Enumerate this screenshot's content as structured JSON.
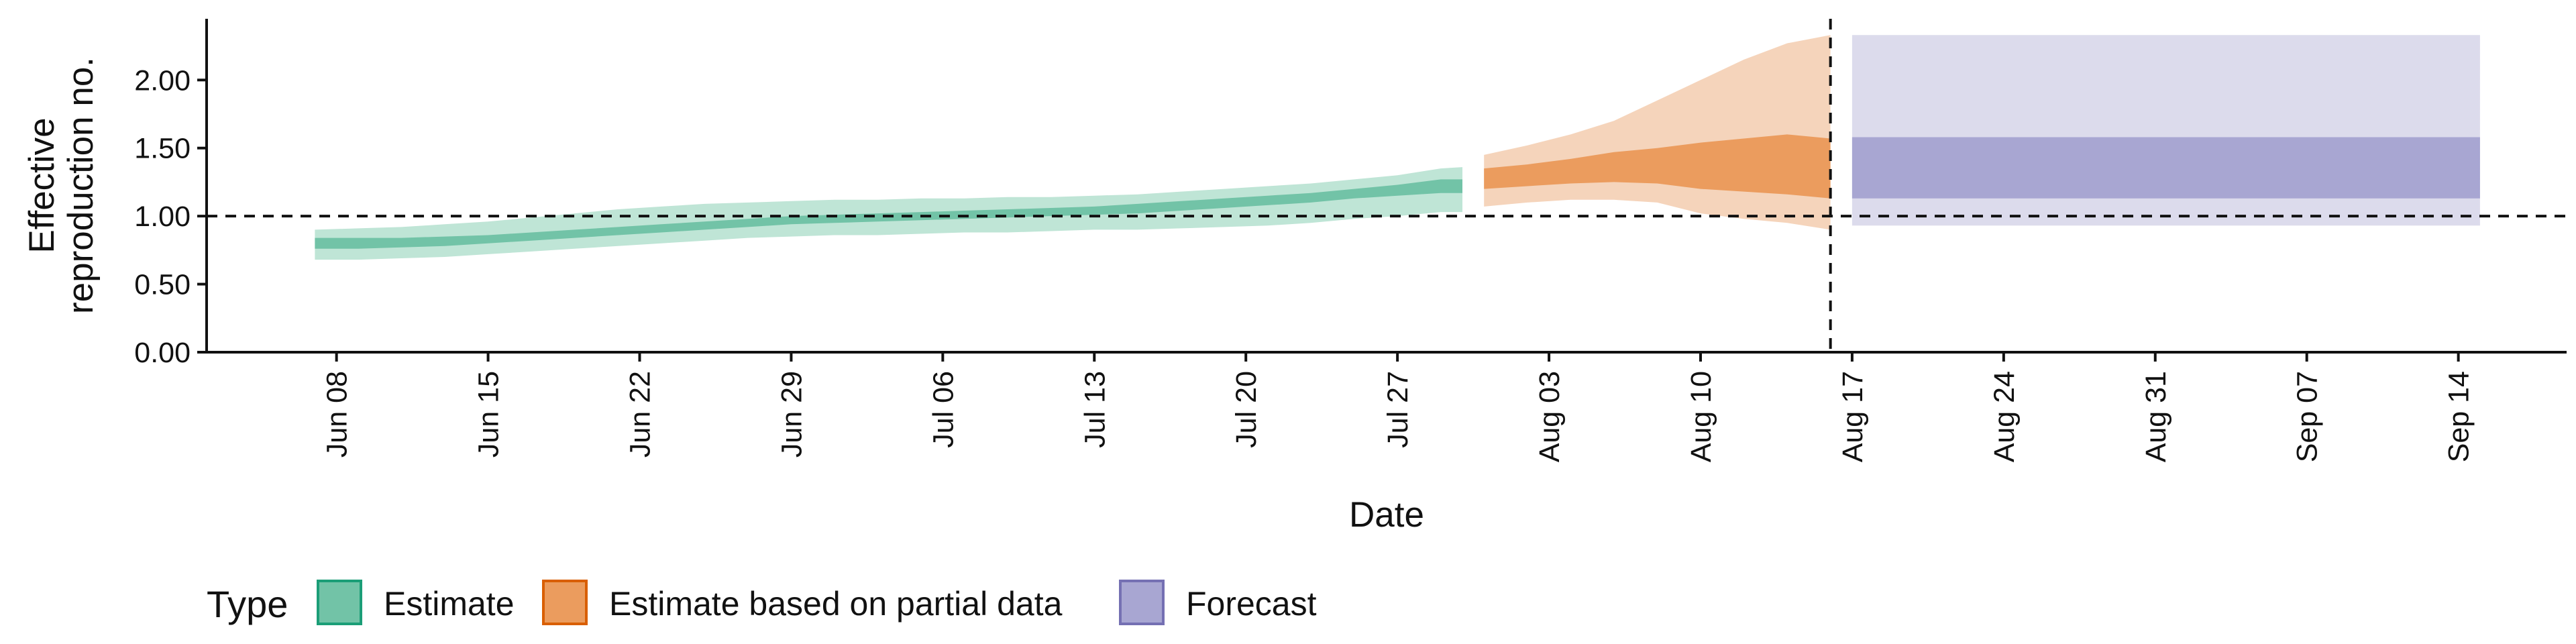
{
  "chart_data": {
    "type": "area",
    "title": "",
    "xlabel": "Date",
    "ylabel": "Effective reproduction no.",
    "ylabel_lines": [
      "Effective",
      "reproduction no."
    ],
    "ylim": [
      0,
      2.45
    ],
    "y_ticks": [
      0,
      0.5,
      1,
      1.5,
      2
    ],
    "y_tick_labels": [
      "0.00",
      "0.50",
      "1.00",
      "1.50",
      "2.00"
    ],
    "xlim": [
      "2020-06-02",
      "2020-09-19"
    ],
    "x_ticks": [
      "2020-06-08",
      "2020-06-15",
      "2020-06-22",
      "2020-06-29",
      "2020-07-06",
      "2020-07-13",
      "2020-07-20",
      "2020-07-27",
      "2020-08-03",
      "2020-08-10",
      "2020-08-17",
      "2020-08-24",
      "2020-08-31",
      "2020-09-07",
      "2020-09-14"
    ],
    "x_tick_labels": [
      "Jun 08",
      "Jun 15",
      "Jun 22",
      "Jun 29",
      "Jul 06",
      "Jul 13",
      "Jul 20",
      "Jul 27",
      "Aug 03",
      "Aug 10",
      "Aug 17",
      "Aug 24",
      "Aug 31",
      "Sep 07",
      "Sep 14"
    ],
    "reference_line_y": 1.0,
    "forecast_start_date": "2020-08-16",
    "grid": false,
    "legend": {
      "title": "Type",
      "position": "bottom-left",
      "entries": [
        {
          "label": "Estimate",
          "fill": "#72c3a7",
          "stroke": "#1b9e77"
        },
        {
          "label": "Estimate based on partial data",
          "fill": "#eb9c5e",
          "stroke": "#d95f02"
        },
        {
          "label": "Forecast",
          "fill": "#a8a6d2",
          "stroke": "#7570b3"
        }
      ]
    },
    "series": [
      {
        "name": "Estimate",
        "outer_color": "#bfe5d6",
        "inner_color": "#72c3a7",
        "x": [
          "2020-06-07",
          "2020-06-09",
          "2020-06-11",
          "2020-06-13",
          "2020-06-15",
          "2020-06-17",
          "2020-06-19",
          "2020-06-21",
          "2020-06-23",
          "2020-06-25",
          "2020-06-27",
          "2020-06-29",
          "2020-07-01",
          "2020-07-03",
          "2020-07-05",
          "2020-07-07",
          "2020-07-09",
          "2020-07-11",
          "2020-07-13",
          "2020-07-15",
          "2020-07-17",
          "2020-07-19",
          "2020-07-21",
          "2020-07-23",
          "2020-07-25",
          "2020-07-27",
          "2020-07-29",
          "2020-07-30"
        ],
        "lower_90": [
          0.68,
          0.68,
          0.69,
          0.7,
          0.72,
          0.74,
          0.76,
          0.78,
          0.8,
          0.82,
          0.84,
          0.85,
          0.86,
          0.86,
          0.87,
          0.88,
          0.88,
          0.89,
          0.9,
          0.9,
          0.91,
          0.92,
          0.93,
          0.95,
          0.98,
          1.0,
          1.03,
          1.03
        ],
        "lower_50": [
          0.76,
          0.76,
          0.77,
          0.78,
          0.8,
          0.82,
          0.84,
          0.86,
          0.88,
          0.9,
          0.92,
          0.94,
          0.95,
          0.96,
          0.97,
          0.98,
          0.99,
          1.0,
          1.01,
          1.02,
          1.04,
          1.06,
          1.08,
          1.1,
          1.13,
          1.15,
          1.17,
          1.17
        ],
        "upper_50": [
          0.84,
          0.84,
          0.84,
          0.85,
          0.86,
          0.88,
          0.9,
          0.92,
          0.94,
          0.96,
          0.98,
          1.0,
          1.01,
          1.02,
          1.03,
          1.04,
          1.05,
          1.06,
          1.07,
          1.09,
          1.11,
          1.13,
          1.15,
          1.17,
          1.2,
          1.23,
          1.27,
          1.27
        ],
        "upper_90": [
          0.9,
          0.91,
          0.92,
          0.94,
          0.96,
          0.99,
          1.02,
          1.05,
          1.07,
          1.09,
          1.1,
          1.11,
          1.12,
          1.12,
          1.13,
          1.13,
          1.14,
          1.14,
          1.15,
          1.16,
          1.18,
          1.2,
          1.22,
          1.24,
          1.27,
          1.3,
          1.35,
          1.36
        ]
      },
      {
        "name": "Estimate based on partial data",
        "outer_color": "#f5d4bb",
        "inner_color": "#eb9c5e",
        "x": [
          "2020-07-31",
          "2020-08-02",
          "2020-08-04",
          "2020-08-06",
          "2020-08-08",
          "2020-08-10",
          "2020-08-12",
          "2020-08-14",
          "2020-08-16"
        ],
        "lower_90": [
          1.07,
          1.1,
          1.12,
          1.12,
          1.1,
          1.02,
          0.98,
          0.95,
          0.9
        ],
        "lower_50": [
          1.2,
          1.22,
          1.24,
          1.25,
          1.24,
          1.2,
          1.18,
          1.16,
          1.13
        ],
        "upper_50": [
          1.35,
          1.38,
          1.42,
          1.47,
          1.5,
          1.54,
          1.57,
          1.6,
          1.57
        ],
        "upper_90": [
          1.45,
          1.52,
          1.6,
          1.7,
          1.85,
          2.0,
          2.15,
          2.27,
          2.33
        ]
      },
      {
        "name": "Forecast",
        "outer_color": "#dcdbec",
        "inner_color": "#a8a6d2",
        "x": [
          "2020-08-17",
          "2020-09-15"
        ],
        "lower_90": [
          0.93,
          0.93
        ],
        "lower_50": [
          1.13,
          1.13
        ],
        "upper_50": [
          1.58,
          1.58
        ],
        "upper_90": [
          2.33,
          2.33
        ]
      }
    ]
  }
}
